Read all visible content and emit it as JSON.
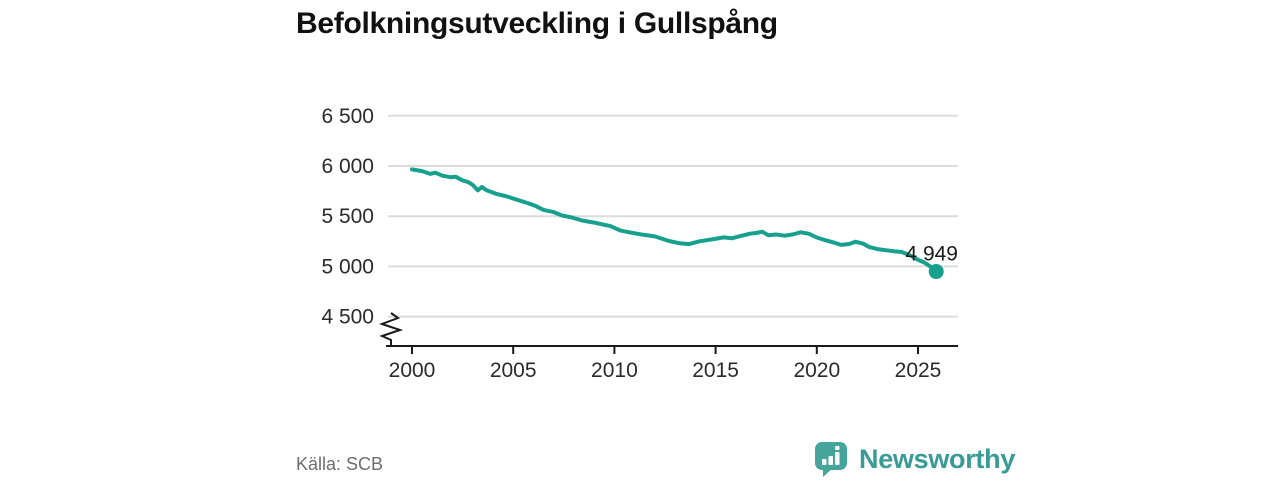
{
  "header": {
    "title": "Befolkningsutveckling i Gullspång"
  },
  "footer": {
    "source": "Källa: SCB",
    "brand": "Newsworthy"
  },
  "colors": {
    "line": "#18a08f",
    "grid": "#dcdcdc",
    "axis": "#1a1a1a",
    "tick_text": "#2b2b2b",
    "muted_text": "#6d6d6d",
    "brand_text": "#399b95",
    "brand_icon": "#45a49c"
  },
  "chart_data": {
    "type": "line",
    "title": "Befolkningsutveckling i Gullspång",
    "xlabel": "",
    "ylabel": "",
    "x_unit": "year",
    "xlim": [
      1998.7,
      2027.2
    ],
    "ylim_displayed": [
      4500,
      6500
    ],
    "axis_break": true,
    "grid": "horizontal",
    "legend": "none",
    "end_label": "4 949",
    "yticks": [
      {
        "label": "6 500",
        "value": 6500
      },
      {
        "label": "6 000",
        "value": 6000
      },
      {
        "label": "5 500",
        "value": 5500
      },
      {
        "label": "5 000",
        "value": 5000
      },
      {
        "label": "4 500",
        "value": 4500
      }
    ],
    "xticks": [
      {
        "label": "2000",
        "value": 2000
      },
      {
        "label": "2005",
        "value": 2005
      },
      {
        "label": "2010",
        "value": 2010
      },
      {
        "label": "2015",
        "value": 2015
      },
      {
        "label": "2020",
        "value": 2020
      },
      {
        "label": "2025",
        "value": 2025
      }
    ],
    "series": [
      {
        "name": "Befolkning i Gullspång",
        "color": "#18a08f",
        "points": [
          [
            2000,
            5966
          ],
          [
            2000.5,
            5949
          ],
          [
            2000.9,
            5921
          ],
          [
            2001.15,
            5933
          ],
          [
            2001.5,
            5903
          ],
          [
            2001.9,
            5888
          ],
          [
            2002.15,
            5893
          ],
          [
            2002.5,
            5857
          ],
          [
            2002.8,
            5838
          ],
          [
            2003,
            5812
          ],
          [
            2003.25,
            5757
          ],
          [
            2003.45,
            5791
          ],
          [
            2003.7,
            5757
          ],
          [
            2004.2,
            5720
          ],
          [
            2004.7,
            5696
          ],
          [
            2005.2,
            5663
          ],
          [
            2005.7,
            5631
          ],
          [
            2006.1,
            5603
          ],
          [
            2006.5,
            5563
          ],
          [
            2007,
            5541
          ],
          [
            2007.4,
            5508
          ],
          [
            2007.9,
            5487
          ],
          [
            2008.4,
            5457
          ],
          [
            2009,
            5436
          ],
          [
            2009.5,
            5414
          ],
          [
            2009.8,
            5401
          ],
          [
            2010.3,
            5357
          ],
          [
            2010.8,
            5337
          ],
          [
            2011.3,
            5319
          ],
          [
            2012,
            5299
          ],
          [
            2012.7,
            5253
          ],
          [
            2013.2,
            5231
          ],
          [
            2013.7,
            5222
          ],
          [
            2014.2,
            5250
          ],
          [
            2014.9,
            5272
          ],
          [
            2015.4,
            5289
          ],
          [
            2015.8,
            5280
          ],
          [
            2016.2,
            5301
          ],
          [
            2016.7,
            5326
          ],
          [
            2017,
            5333
          ],
          [
            2017.3,
            5346
          ],
          [
            2017.6,
            5311
          ],
          [
            2018,
            5318
          ],
          [
            2018.4,
            5306
          ],
          [
            2018.8,
            5318
          ],
          [
            2019.2,
            5340
          ],
          [
            2019.6,
            5326
          ],
          [
            2020,
            5288
          ],
          [
            2020.4,
            5262
          ],
          [
            2020.8,
            5240
          ],
          [
            2021.2,
            5214
          ],
          [
            2021.6,
            5223
          ],
          [
            2021.9,
            5246
          ],
          [
            2022.3,
            5226
          ],
          [
            2022.6,
            5192
          ],
          [
            2023,
            5172
          ],
          [
            2023.4,
            5161
          ],
          [
            2023.8,
            5151
          ],
          [
            2024.2,
            5143
          ],
          [
            2024.6,
            5111
          ],
          [
            2025,
            5066
          ],
          [
            2025.3,
            5040
          ],
          [
            2025.6,
            5001
          ],
          [
            2025.9,
            4949
          ]
        ]
      }
    ]
  }
}
